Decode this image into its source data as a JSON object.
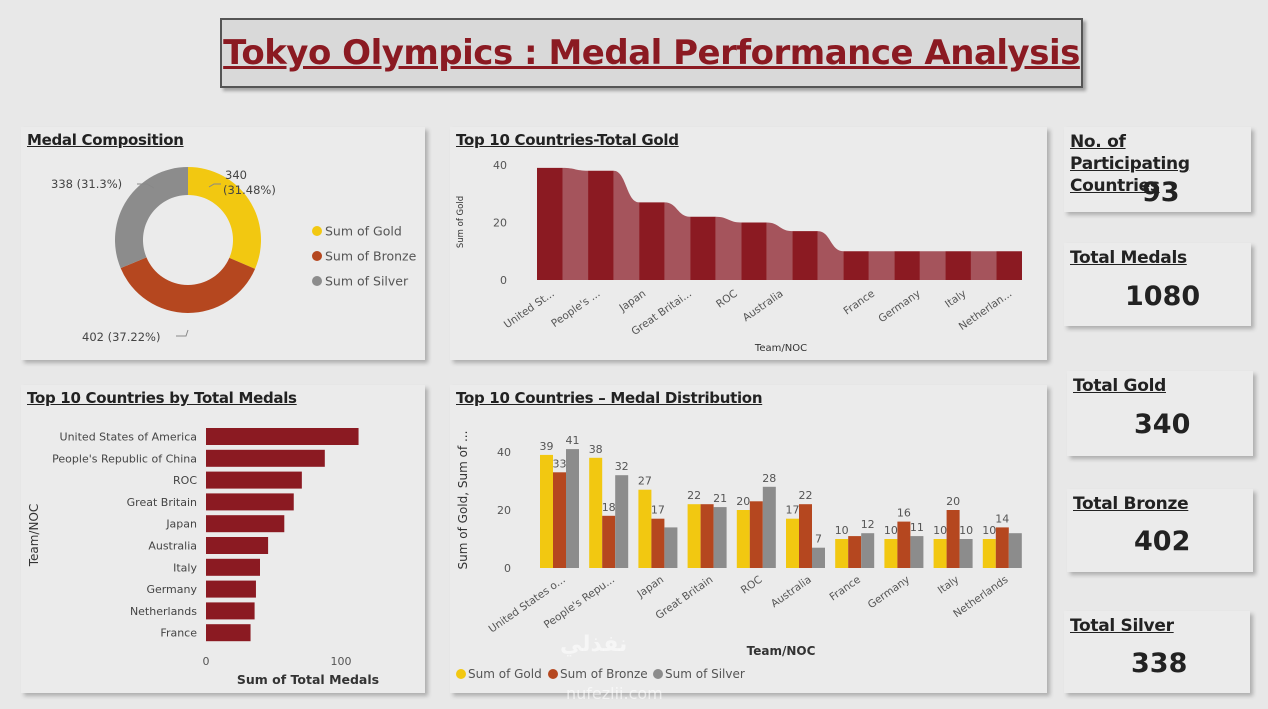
{
  "header": {
    "title": "Tokyo Olympics : Medal Performance Analysis"
  },
  "kpis": {
    "participating": {
      "label": "No. of Participating Countries",
      "value": "93"
    },
    "total_medals": {
      "label": "Total Medals",
      "value": "1080"
    },
    "total_gold": {
      "label": "Total Gold",
      "value": "340"
    },
    "total_bronze": {
      "label": "Total Bronze",
      "value": "402"
    },
    "total_silver": {
      "label": "Total Silver",
      "value": "338"
    }
  },
  "colors": {
    "gold": "#f2c811",
    "bronze": "#b5471f",
    "silver": "#8c8c8c",
    "maroon": "#8b1a22",
    "maroon_light": "#a5545c"
  },
  "watermark": {
    "arabic": "نفذلي",
    "latin": "nufezlii.com"
  },
  "chart_data": [
    {
      "id": "composition",
      "type": "pie",
      "title": "Medal Composition",
      "labels": [
        "Sum of Gold",
        "Sum of Bronze",
        "Sum of Silver"
      ],
      "values": [
        340,
        402,
        338
      ],
      "data_labels": [
        "340\n(31.48%)",
        "402 (37.22%)",
        "338 (31.3%)"
      ],
      "legend": "right"
    },
    {
      "id": "gold",
      "type": "bar",
      "title": "Top 10 Countries-Total Gold",
      "categories": [
        "United States of America",
        "People's Republic of China",
        "Japan",
        "Great Britain",
        "ROC",
        "Australia",
        "Netherlands",
        "France",
        "Germany",
        "Italy"
      ],
      "tick_labels": [
        "United St...",
        "People's ...",
        "Japan",
        "Great Britai...",
        "ROC",
        "Australia",
        "France",
        "Germany",
        "Italy",
        "Netherlan..."
      ],
      "tick_indices": [
        0,
        1,
        2,
        3,
        4,
        5,
        7,
        8,
        9,
        10
      ],
      "values": [
        39,
        38,
        27,
        22,
        20,
        17,
        10,
        10,
        10,
        10
      ],
      "xlabel": "Team/NOC",
      "ylabel": "Sum of Gold",
      "yticks": [
        0,
        20,
        40
      ],
      "ylim": [
        0,
        42
      ]
    },
    {
      "id": "total",
      "type": "bar",
      "orientation": "horizontal",
      "title": "Top 10 Countries by Total Medals",
      "categories": [
        "United States of America",
        "People's Republic of China",
        "ROC",
        "Great Britain",
        "Japan",
        "Australia",
        "Italy",
        "Germany",
        "Netherlands",
        "France"
      ],
      "values": [
        113,
        88,
        71,
        65,
        58,
        46,
        40,
        37,
        36,
        33
      ],
      "xlabel": "Sum of Total Medals",
      "ylabel": "Team/NOC",
      "xticks": [
        0,
        100
      ],
      "xlim": [
        0,
        130
      ]
    },
    {
      "id": "distribution",
      "type": "bar",
      "title": "Top 10 Countries – Medal Distribution",
      "categories": [
        "United States o...",
        "People's Repu...",
        "Japan",
        "Great Britain",
        "ROC",
        "Australia",
        "France",
        "Germany",
        "Italy",
        "Netherlands"
      ],
      "series": [
        {
          "name": "Sum of Gold",
          "values": [
            39,
            38,
            27,
            22,
            20,
            17,
            10,
            10,
            10,
            10
          ]
        },
        {
          "name": "Sum of Bronze",
          "values": [
            33,
            18,
            17,
            22,
            23,
            22,
            11,
            16,
            20,
            14
          ]
        },
        {
          "name": "Sum of Silver",
          "values": [
            41,
            32,
            14,
            21,
            28,
            7,
            12,
            11,
            10,
            12
          ]
        }
      ],
      "data_labels": [
        [
          "39",
          "33",
          "41"
        ],
        [
          "38",
          "18",
          "32"
        ],
        [
          "27",
          "17",
          ""
        ],
        [
          "22",
          "",
          "21"
        ],
        [
          "20",
          "",
          "28"
        ],
        [
          "17",
          "22",
          "7"
        ],
        [
          "10",
          "",
          "12"
        ],
        [
          "10",
          "16",
          "11"
        ],
        [
          "10",
          "20",
          "10"
        ],
        [
          "10",
          "14",
          ""
        ]
      ],
      "xlabel": "Team/NOC",
      "ylabel": "Sum of Gold, Sum of ...",
      "yticks": [
        0,
        20,
        40
      ],
      "ylim": [
        0,
        44
      ],
      "legend": "bottom"
    }
  ]
}
